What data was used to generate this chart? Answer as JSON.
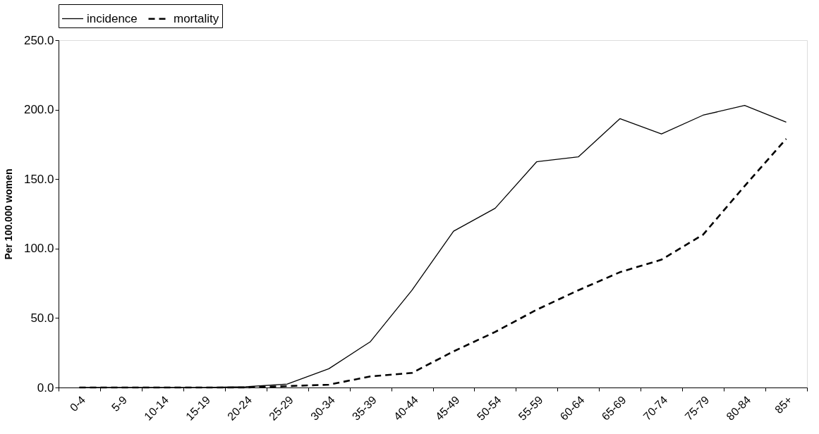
{
  "chart_data": {
    "type": "line",
    "categories": [
      "0-4",
      "5-9",
      "10-14",
      "15-19",
      "20-24",
      "25-29",
      "30-34",
      "35-39",
      "40-44",
      "45-49",
      "50-54",
      "55-59",
      "60-64",
      "65-69",
      "70-74",
      "75-79",
      "80-84",
      "85+"
    ],
    "series": [
      {
        "name": "incidence",
        "color": "#000000",
        "line_style": "solid",
        "values": [
          0,
          0,
          0,
          0.1,
          0.5,
          2.5,
          13.5,
          33,
          70,
          112.5,
          129,
          162.5,
          166,
          193.5,
          182.5,
          196,
          203,
          191
        ]
      },
      {
        "name": "mortality",
        "color": "#000000",
        "line_style": "dashed",
        "values": [
          0,
          0,
          0,
          0,
          0,
          1,
          2,
          8,
          10.5,
          26,
          40,
          56,
          70,
          83,
          92,
          110,
          145,
          179
        ]
      }
    ],
    "ylabel": "Per 100.000 women",
    "ylim": [
      0,
      250
    ],
    "yticks": [
      {
        "value": 0,
        "label": "0.0"
      },
      {
        "value": 50,
        "label": "50.0"
      },
      {
        "value": 100,
        "label": "100.0"
      },
      {
        "value": 150,
        "label": "150.0"
      },
      {
        "value": 200,
        "label": "200.0"
      },
      {
        "value": 250,
        "label": "250.0"
      }
    ],
    "grid": false,
    "legend": "top",
    "marker": "none"
  }
}
